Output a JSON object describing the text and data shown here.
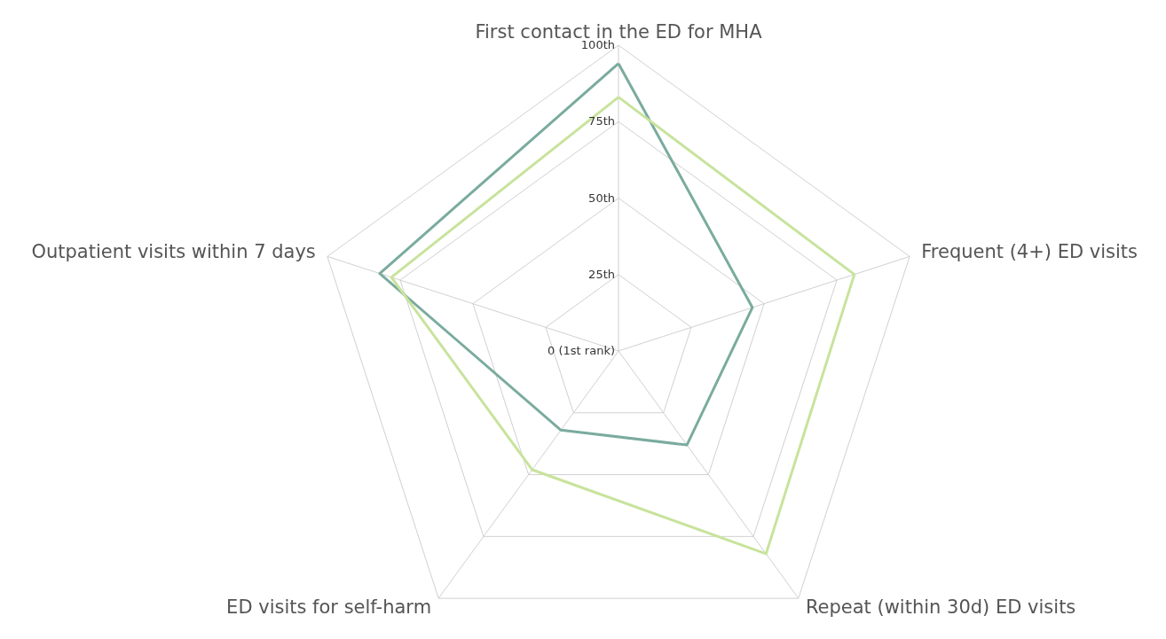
{
  "chart_data": {
    "type": "radar",
    "categories": [
      "First contact in the ED for MHA",
      "Frequent (4+) ED visits",
      "Repeat (within 30d) ED visits",
      "ED visits for self-harm",
      "Outpatient visits within 7 days"
    ],
    "series": [
      {
        "color": "#7aab9e",
        "values": [
          94,
          46,
          38,
          32,
          82
        ]
      },
      {
        "color": "#c8e39c",
        "values": [
          83,
          81,
          82,
          48,
          78
        ]
      }
    ],
    "ylim": [
      0,
      100
    ],
    "yticks": [
      {
        "value": 0,
        "label": "0 (1st rank)"
      },
      {
        "value": 25,
        "label": "25th"
      },
      {
        "value": 50,
        "label": "50th"
      },
      {
        "value": 75,
        "label": "75th"
      },
      {
        "value": 100,
        "label": "100th"
      }
    ],
    "grid": true,
    "marker": "none",
    "line_style": "solid"
  }
}
